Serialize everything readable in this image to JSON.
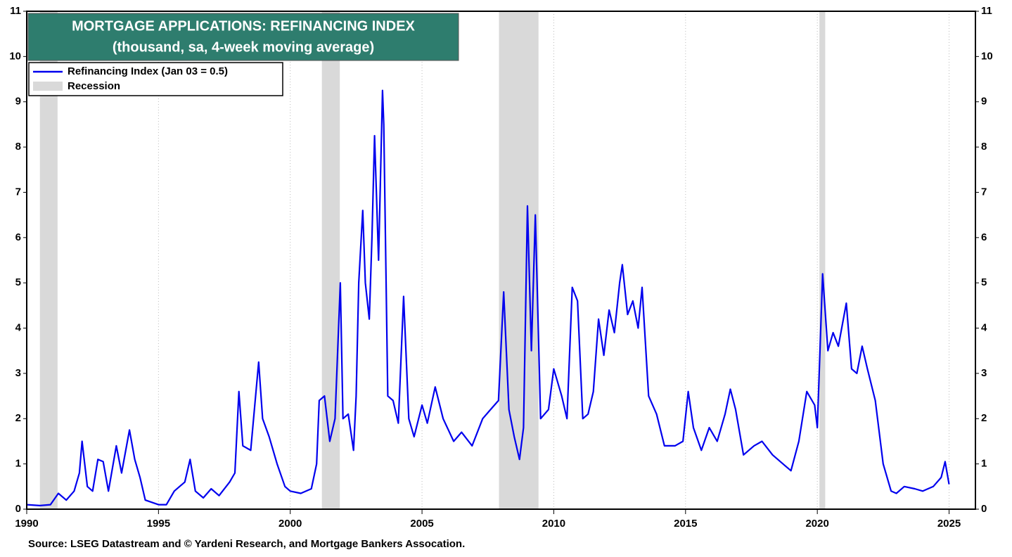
{
  "chart_data": {
    "type": "line",
    "title": "MORTGAGE APPLICATIONS: REFINANCING INDEX",
    "subtitle": "(thousand, sa, 4-week moving average)",
    "source": "Source: LSEG Datastream and © Yardeni Research, and Mortgage Bankers Assocation.",
    "x": [
      1990.0,
      1990.5,
      1990.9,
      1991.2,
      1991.5,
      1991.8,
      1992.0,
      1992.1,
      1992.3,
      1992.5,
      1992.7,
      1992.9,
      1993.1,
      1993.4,
      1993.6,
      1993.9,
      1994.1,
      1994.3,
      1994.5,
      1995.0,
      1995.3,
      1995.6,
      1996.0,
      1996.2,
      1996.4,
      1996.7,
      1997.0,
      1997.3,
      1997.7,
      1997.9,
      1998.05,
      1998.2,
      1998.5,
      1998.8,
      1998.95,
      1999.2,
      1999.5,
      1999.8,
      2000.0,
      2000.4,
      2000.8,
      2001.0,
      2001.1,
      2001.3,
      2001.5,
      2001.7,
      2001.9,
      2002.0,
      2002.2,
      2002.4,
      2002.5,
      2002.6,
      2002.75,
      2002.85,
      2003.0,
      2003.1,
      2003.2,
      2003.35,
      2003.5,
      2003.55,
      2003.7,
      2003.9,
      2004.1,
      2004.3,
      2004.5,
      2004.7,
      2005.0,
      2005.2,
      2005.5,
      2005.8,
      2006.2,
      2006.5,
      2006.9,
      2007.3,
      2007.6,
      2007.9,
      2008.1,
      2008.3,
      2008.5,
      2008.7,
      2008.85,
      2009.0,
      2009.15,
      2009.3,
      2009.5,
      2009.8,
      2010.0,
      2010.3,
      2010.5,
      2010.7,
      2010.9,
      2011.1,
      2011.3,
      2011.5,
      2011.7,
      2011.9,
      2012.1,
      2012.3,
      2012.5,
      2012.6,
      2012.8,
      2013.0,
      2013.2,
      2013.35,
      2013.6,
      2013.9,
      2014.2,
      2014.6,
      2014.9,
      2015.1,
      2015.3,
      2015.6,
      2015.9,
      2016.2,
      2016.5,
      2016.7,
      2016.9,
      2017.2,
      2017.6,
      2017.9,
      2018.3,
      2018.8,
      2019.0,
      2019.3,
      2019.6,
      2019.9,
      2020.0,
      2020.2,
      2020.4,
      2020.6,
      2020.8,
      2021.1,
      2021.3,
      2021.5,
      2021.7,
      2021.9,
      2022.2,
      2022.5,
      2022.8,
      2023.0,
      2023.3,
      2023.7,
      2024.0,
      2024.4,
      2024.7,
      2024.85,
      2025.0
    ],
    "series": [
      {
        "name": "Refinancing Index (Jan 03 = 0.5)",
        "color": "#0000ee",
        "values": [
          0.1,
          0.08,
          0.1,
          0.35,
          0.2,
          0.4,
          0.8,
          1.5,
          0.5,
          0.4,
          1.1,
          1.05,
          0.4,
          1.4,
          0.8,
          1.75,
          1.1,
          0.7,
          0.2,
          0.1,
          0.1,
          0.4,
          0.6,
          1.1,
          0.4,
          0.25,
          0.45,
          0.3,
          0.6,
          0.8,
          2.6,
          1.4,
          1.3,
          3.25,
          2.0,
          1.6,
          1.0,
          0.5,
          0.4,
          0.35,
          0.45,
          1.0,
          2.4,
          2.5,
          1.5,
          2.0,
          5.0,
          2.0,
          2.1,
          1.3,
          2.5,
          5.0,
          6.6,
          5.0,
          4.2,
          6.0,
          8.25,
          5.5,
          9.25,
          8.5,
          2.5,
          2.4,
          1.9,
          4.7,
          2.0,
          1.6,
          2.3,
          1.9,
          2.7,
          2.0,
          1.5,
          1.7,
          1.4,
          2.0,
          2.2,
          2.4,
          4.8,
          2.2,
          1.6,
          1.1,
          1.8,
          6.7,
          3.5,
          6.5,
          2.0,
          2.2,
          3.1,
          2.5,
          2.0,
          4.9,
          4.6,
          2.0,
          2.1,
          2.6,
          4.2,
          3.4,
          4.4,
          3.9,
          5.0,
          5.4,
          4.3,
          4.6,
          4.0,
          4.9,
          2.5,
          2.1,
          1.4,
          1.4,
          1.5,
          2.6,
          1.8,
          1.3,
          1.8,
          1.5,
          2.1,
          2.65,
          2.2,
          1.2,
          1.4,
          1.5,
          1.2,
          0.95,
          0.85,
          1.5,
          2.6,
          2.3,
          1.8,
          5.2,
          3.5,
          3.9,
          3.6,
          4.55,
          3.1,
          3.0,
          3.6,
          3.1,
          2.4,
          1.0,
          0.4,
          0.35,
          0.5,
          0.45,
          0.4,
          0.5,
          0.7,
          1.05,
          0.55
        ]
      }
    ],
    "recession": {
      "name": "Recession",
      "color": "#d9d9d9",
      "ranges": [
        [
          1990.5,
          1991.17
        ],
        [
          2001.2,
          2001.88
        ],
        [
          2007.92,
          2009.42
        ],
        [
          2020.08,
          2020.3
        ]
      ]
    },
    "xlim": [
      1990,
      2026
    ],
    "ylim": [
      0,
      11
    ],
    "xticks": [
      1990,
      1995,
      2000,
      2005,
      2010,
      2015,
      2020,
      2025
    ],
    "yticks": [
      0,
      1,
      2,
      3,
      4,
      5,
      6,
      7,
      8,
      9,
      10,
      11
    ]
  }
}
